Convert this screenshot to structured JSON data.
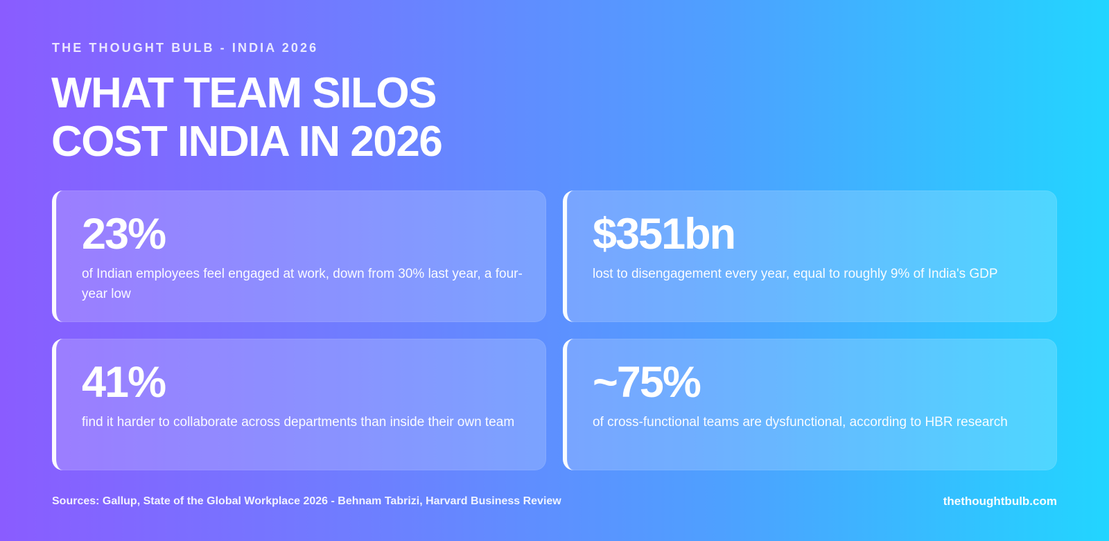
{
  "header": {
    "eyebrow": "THE THOUGHT BULB - INDIA 2026",
    "headline_line_1": "WHAT TEAM SILOS",
    "headline_line_2": "COST INDIA IN 2026"
  },
  "stats": [
    {
      "value": "23%",
      "text": "of Indian employees feel engaged at work, down from 30% last year, a four-year low"
    },
    {
      "value": "$351bn",
      "text": "lost to disengagement every year, equal to roughly 9% of India's GDP"
    },
    {
      "value": "41%",
      "text": "find it harder to collaborate across departments than inside their own team"
    },
    {
      "value": "~75%",
      "text": "of cross-functional teams are dysfunctional, according to HBR research"
    }
  ],
  "footer": {
    "sources": "Sources: Gallup, State of the Global Workplace 2026 - Behnam Tabrizi, Harvard Business Review",
    "site": "thethoughtbulb.com"
  },
  "colors": {
    "gradient_start": "#8a5cff",
    "gradient_mid_1": "#6f7dff",
    "gradient_mid_2": "#4ea0ff",
    "gradient_end": "#22d5ff",
    "text": "#ffffff",
    "card_fill": "rgba(255,255,255,0.18)",
    "card_accent": "#ffffff"
  }
}
